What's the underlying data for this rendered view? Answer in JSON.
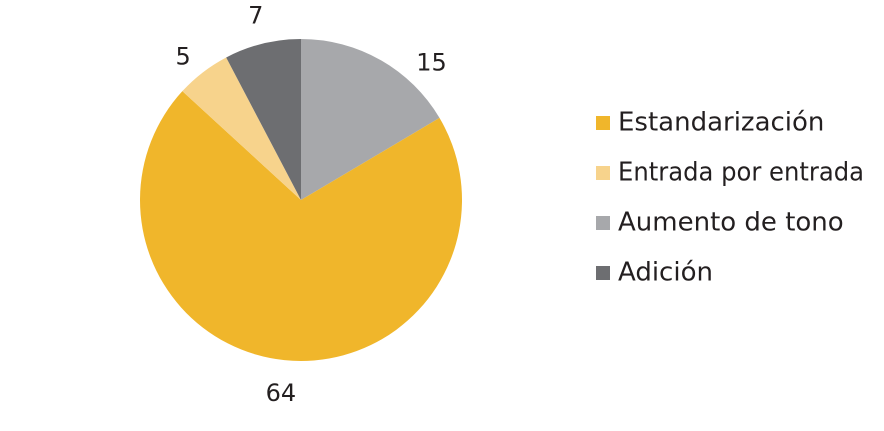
{
  "chart_data": {
    "type": "pie",
    "title": "",
    "start_angle": "12 o'clock",
    "direction": "clockwise",
    "legend_position": "right",
    "series": [
      {
        "name": "Aumento de tono",
        "value": 15,
        "color": "#a7a8ab"
      },
      {
        "name": "Estandarización",
        "value": 64,
        "color": "#f0b62b"
      },
      {
        "name": "Entrada por entrada",
        "value": 5,
        "color": "#f7d38c"
      },
      {
        "name": "Adición",
        "value": 7,
        "color": "#6d6e71"
      }
    ],
    "legend_order": [
      "Estandarización",
      "Entrada por entrada",
      "Aumento de tono",
      "Adición"
    ]
  }
}
